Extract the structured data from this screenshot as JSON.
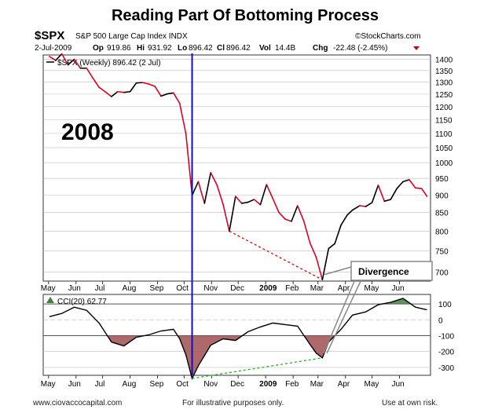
{
  "title": "Reading Part Of Bottoming Process",
  "header": {
    "symbol": "$SPX",
    "name": "S&P 500 Large Cap Index INDX",
    "source": "©StockCharts.com",
    "date": "2-Jul-2009",
    "op_label": "Op",
    "op": "919.86",
    "hi_label": "Hi",
    "hi": "931.92",
    "lo_label": "Lo",
    "lo": "896.42",
    "cl_label": "Cl",
    "cl": "896.42",
    "vol_label": "Vol",
    "vol": "14.4B",
    "chg_label": "Chg",
    "chg": "-22.48 (-2.45%)"
  },
  "annotations": {
    "year": "2008",
    "divergence": "Divergence"
  },
  "footer": {
    "left": "www.ciovaccocapital.com",
    "center": "For illustrative purposes only.",
    "right": "Use at own risk."
  },
  "colors": {
    "price_up": "#000000",
    "price_down": "#e00020",
    "vertical_line": "#1010c0",
    "price_divergence": "#e00000",
    "cci_divergence": "#20b020",
    "cci_neg_fill": "#a05050",
    "cci_pos_fill": "#408040",
    "grid": "#bbbbbb",
    "callout_box_border": "#888888"
  },
  "chart_data": [
    {
      "type": "line",
      "legend": "$SPX (Weekly) 896.42 (2 Jul)",
      "y_scale": "log",
      "ylim": [
        680,
        1420
      ],
      "y_ticks": [
        700,
        750,
        800,
        850,
        900,
        950,
        1000,
        1050,
        1100,
        1150,
        1200,
        1250,
        1300,
        1350,
        1400
      ],
      "x_labels": [
        "May",
        "Jun",
        "Jul",
        "Aug",
        "Sep",
        "Oct",
        "Nov",
        "Dec",
        "2009",
        "Feb",
        "Mar",
        "Apr",
        "May",
        "Jun"
      ],
      "x": [
        "2008-05-02",
        "2008-05-09",
        "2008-05-16",
        "2008-05-23",
        "2008-05-30",
        "2008-06-06",
        "2008-06-13",
        "2008-06-20",
        "2008-06-27",
        "2008-07-03",
        "2008-07-11",
        "2008-07-18",
        "2008-07-25",
        "2008-08-01",
        "2008-08-08",
        "2008-08-15",
        "2008-08-22",
        "2008-08-29",
        "2008-09-05",
        "2008-09-12",
        "2008-09-19",
        "2008-09-26",
        "2008-10-03",
        "2008-10-10",
        "2008-10-17",
        "2008-10-24",
        "2008-10-31",
        "2008-11-07",
        "2008-11-14",
        "2008-11-21",
        "2008-11-28",
        "2008-12-05",
        "2008-12-12",
        "2008-12-19",
        "2008-12-26",
        "2009-01-02",
        "2009-01-09",
        "2009-01-16",
        "2009-01-23",
        "2009-01-30",
        "2009-02-06",
        "2009-02-13",
        "2009-02-20",
        "2009-02-27",
        "2009-03-06",
        "2009-03-13",
        "2009-03-20",
        "2009-03-27",
        "2009-04-03",
        "2009-04-09",
        "2009-04-17",
        "2009-04-24",
        "2009-05-01",
        "2009-05-08",
        "2009-05-15",
        "2009-05-22",
        "2009-05-29",
        "2009-06-05",
        "2009-06-12",
        "2009-06-19",
        "2009-06-26",
        "2009-07-02"
      ],
      "values": [
        1413,
        1395,
        1425,
        1375,
        1400,
        1360,
        1360,
        1317,
        1278,
        1262,
        1240,
        1260,
        1257,
        1260,
        1296,
        1298,
        1292,
        1282,
        1242,
        1251,
        1255,
        1213,
        1099,
        899,
        940,
        876,
        968,
        930,
        873,
        800,
        896,
        876,
        879,
        887,
        872,
        931,
        890,
        850,
        832,
        826,
        869,
        827,
        770,
        735,
        683,
        756,
        768,
        816,
        843,
        857,
        869,
        867,
        878,
        929,
        882,
        887,
        919,
        940,
        946,
        921,
        919,
        896
      ],
      "divergence_price": [
        [
          "2008-11-21",
          800
        ],
        [
          "2009-03-06",
          683
        ]
      ]
    },
    {
      "type": "area",
      "legend": "CCI(20) 62.77",
      "ylim": [
        -350,
        160
      ],
      "y_ticks": [
        -300,
        -200,
        -100,
        0,
        100
      ],
      "x_labels": [
        "May",
        "Jun",
        "Jul",
        "Aug",
        "Sep",
        "Oct",
        "Nov",
        "Dec",
        "2009",
        "Feb",
        "Mar",
        "Apr",
        "May",
        "Jun"
      ],
      "x": [
        "2008-05-02",
        "2008-05-16",
        "2008-05-30",
        "2008-06-13",
        "2008-06-27",
        "2008-07-11",
        "2008-07-25",
        "2008-08-08",
        "2008-08-22",
        "2008-09-05",
        "2008-09-19",
        "2008-09-26",
        "2008-10-03",
        "2008-10-10",
        "2008-10-17",
        "2008-10-31",
        "2008-11-14",
        "2008-11-28",
        "2008-12-12",
        "2008-12-26",
        "2009-01-09",
        "2009-01-23",
        "2009-02-06",
        "2009-02-20",
        "2009-02-27",
        "2009-03-06",
        "2009-03-13",
        "2009-03-27",
        "2009-04-09",
        "2009-04-24",
        "2009-05-08",
        "2009-05-22",
        "2009-06-05",
        "2009-06-19",
        "2009-07-02"
      ],
      "values": [
        20,
        40,
        80,
        60,
        -20,
        -140,
        -165,
        -110,
        -95,
        -70,
        -60,
        -120,
        -220,
        -370,
        -290,
        -160,
        -120,
        -130,
        -75,
        -45,
        -20,
        -30,
        -40,
        -155,
        -210,
        -240,
        -140,
        -60,
        30,
        50,
        95,
        110,
        135,
        80,
        63
      ],
      "divergence_cci": [
        [
          "2008-10-10",
          -370
        ],
        [
          "2009-03-06",
          -240
        ]
      ]
    }
  ]
}
